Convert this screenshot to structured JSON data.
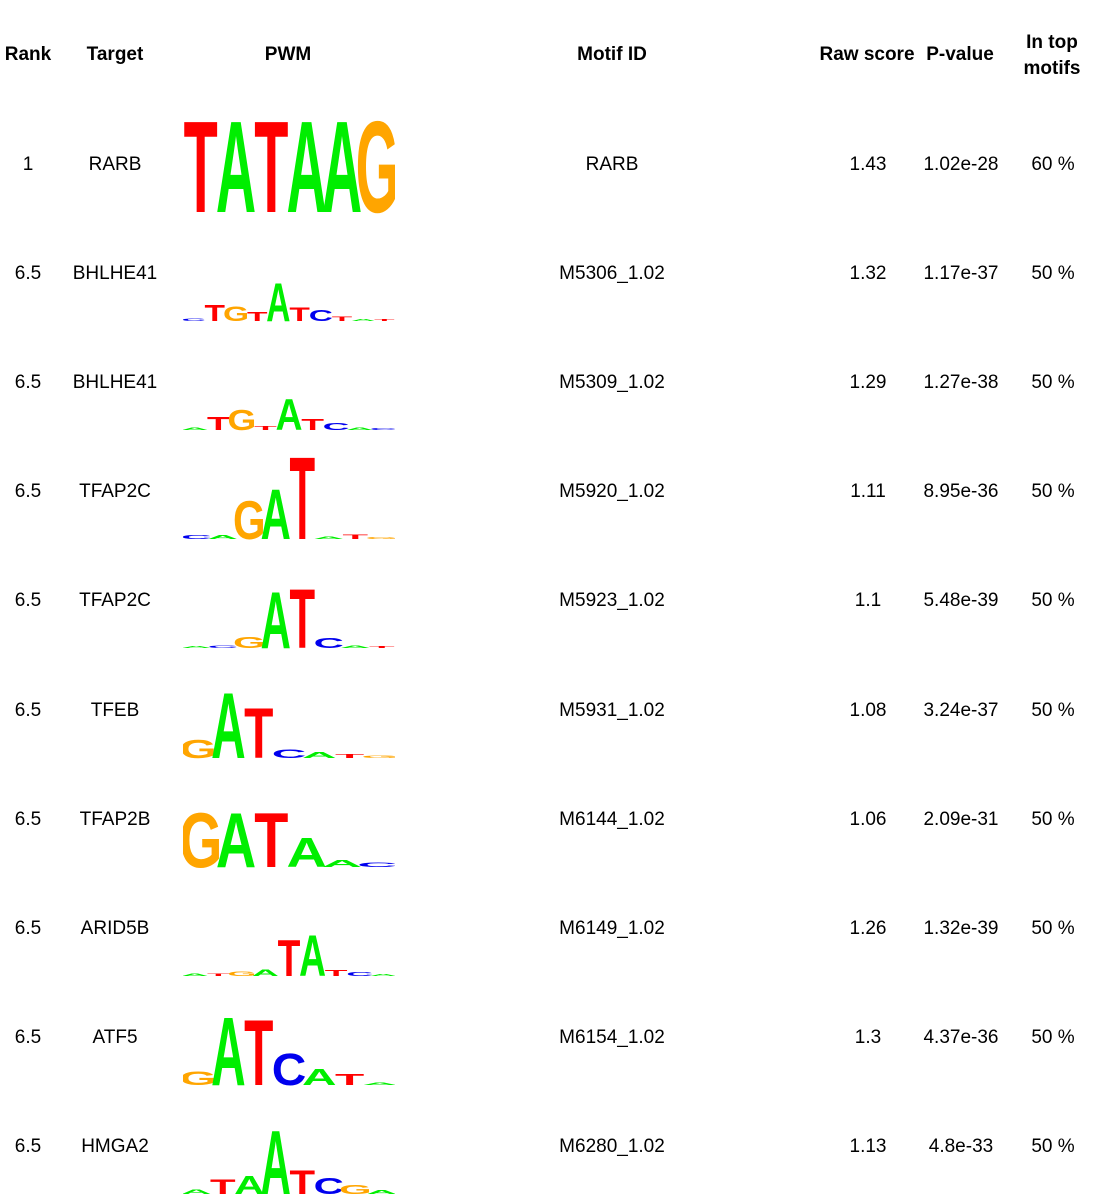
{
  "headers": {
    "rank": "Rank",
    "target": "Target",
    "pwm": "PWM",
    "motif_id": "Motif ID",
    "raw_score": "Raw score",
    "p_value": "P-value",
    "in_top_motifs": "In top motifs"
  },
  "base_colors": {
    "A": "#00ee00",
    "C": "#0000ee",
    "G": "#ffa500",
    "T": "#ff0000"
  },
  "rows": [
    {
      "rank": "1",
      "target": "RARB",
      "motif_id": "RARB",
      "raw_score": "1.43",
      "p_value": "1.02e-28",
      "in_top": "60 %",
      "logo": [
        [
          "T",
          1.0
        ],
        [
          "A",
          1.0
        ],
        [
          "T",
          1.0
        ],
        [
          "A",
          1.0
        ],
        [
          "A",
          1.0
        ],
        [
          "G",
          1.0
        ]
      ]
    },
    {
      "rank": "6.5",
      "target": "BHLHE41",
      "motif_id": "M5306_1.02",
      "raw_score": "1.32",
      "p_value": "1.17e-37",
      "in_top": "50 %",
      "logo": [
        [
          "C",
          0.03
        ],
        [
          "T",
          0.18
        ],
        [
          "G",
          0.16
        ],
        [
          "T",
          0.1
        ],
        [
          "A",
          0.42
        ],
        [
          "T",
          0.15
        ],
        [
          "C",
          0.12
        ],
        [
          "T",
          0.05
        ],
        [
          "A",
          0.02
        ],
        [
          "T",
          0.01
        ]
      ]
    },
    {
      "rank": "6.5",
      "target": "BHLHE41",
      "motif_id": "M5309_1.02",
      "raw_score": "1.29",
      "p_value": "1.27e-38",
      "in_top": "50 %",
      "logo": [
        [
          "A",
          0.03
        ],
        [
          "T",
          0.14
        ],
        [
          "G",
          0.22
        ],
        [
          "T",
          0.04
        ],
        [
          "A",
          0.34
        ],
        [
          "T",
          0.12
        ],
        [
          "C",
          0.08
        ],
        [
          "A",
          0.03
        ],
        [
          "C",
          0.02
        ]
      ]
    },
    {
      "rank": "6.5",
      "target": "TFAP2C",
      "motif_id": "M5920_1.02",
      "raw_score": "1.11",
      "p_value": "8.95e-36",
      "in_top": "50 %",
      "logo": [
        [
          "C",
          0.04
        ],
        [
          "A",
          0.04
        ],
        [
          "G",
          0.42
        ],
        [
          "A",
          0.55
        ],
        [
          "T",
          0.9
        ],
        [
          "A",
          0.03
        ],
        [
          "T",
          0.05
        ],
        [
          "G",
          0.02
        ]
      ]
    },
    {
      "rank": "6.5",
      "target": "TFAP2C",
      "motif_id": "M5923_1.02",
      "raw_score": "1.1",
      "p_value": "5.48e-39",
      "in_top": "50 %",
      "logo": [
        [
          "A",
          0.02
        ],
        [
          "C",
          0.03
        ],
        [
          "G",
          0.12
        ],
        [
          "A",
          0.62
        ],
        [
          "T",
          0.65
        ],
        [
          "C",
          0.11
        ],
        [
          "A",
          0.03
        ],
        [
          "T",
          0.02
        ]
      ]
    },
    {
      "rank": "6.5",
      "target": "TFEB",
      "motif_id": "M5931_1.02",
      "raw_score": "1.08",
      "p_value": "3.24e-37",
      "in_top": "50 %",
      "logo": [
        [
          "G",
          0.2
        ],
        [
          "A",
          0.72
        ],
        [
          "T",
          0.55
        ],
        [
          "C",
          0.09
        ],
        [
          "A",
          0.06
        ],
        [
          "T",
          0.04
        ],
        [
          "G",
          0.03
        ]
      ]
    },
    {
      "rank": "6.5",
      "target": "TFAP2B",
      "motif_id": "M6144_1.02",
      "raw_score": "1.06",
      "p_value": "2.09e-31",
      "in_top": "50 %",
      "logo": [
        [
          "G",
          0.6
        ],
        [
          "A",
          0.6
        ],
        [
          "T",
          0.6
        ],
        [
          "A",
          0.32
        ],
        [
          "A",
          0.08
        ],
        [
          "C",
          0.05
        ]
      ]
    },
    {
      "rank": "6.5",
      "target": "ARID5B",
      "motif_id": "M6149_1.02",
      "raw_score": "1.26",
      "p_value": "1.32e-39",
      "in_top": "50 %",
      "logo": [
        [
          "A",
          0.03
        ],
        [
          "T",
          0.03
        ],
        [
          "G",
          0.05
        ],
        [
          "A",
          0.07
        ],
        [
          "T",
          0.4
        ],
        [
          "A",
          0.45
        ],
        [
          "T",
          0.06
        ],
        [
          "C",
          0.04
        ],
        [
          "A",
          0.02
        ]
      ]
    },
    {
      "rank": "6.5",
      "target": "ATF5",
      "motif_id": "M6154_1.02",
      "raw_score": "1.3",
      "p_value": "4.37e-36",
      "in_top": "50 %",
      "logo": [
        [
          "G",
          0.15
        ],
        [
          "A",
          0.75
        ],
        [
          "T",
          0.72
        ],
        [
          "C",
          0.35
        ],
        [
          "A",
          0.18
        ],
        [
          "T",
          0.12
        ],
        [
          "A",
          0.03
        ]
      ]
    },
    {
      "rank": "6.5",
      "target": "HMGA2",
      "motif_id": "M6280_1.02",
      "raw_score": "1.13",
      "p_value": "4.8e-33",
      "in_top": "50 %",
      "logo": [
        [
          "A",
          0.05
        ],
        [
          "T",
          0.16
        ],
        [
          "A",
          0.2
        ],
        [
          "A",
          0.7
        ],
        [
          "T",
          0.26
        ],
        [
          "C",
          0.18
        ],
        [
          "G",
          0.1
        ],
        [
          "A",
          0.04
        ]
      ]
    }
  ]
}
